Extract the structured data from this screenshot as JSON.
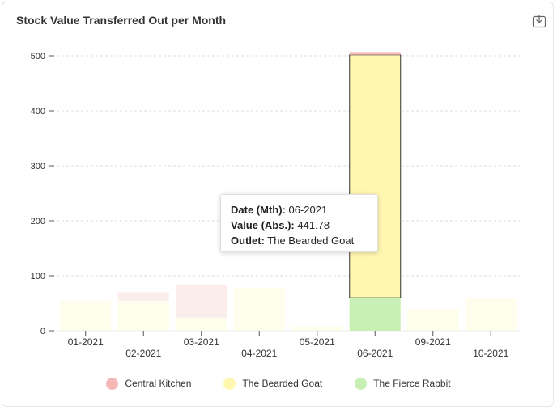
{
  "card": {
    "title": "Stock Value Transferred Out per Month",
    "download_icon": "download-icon"
  },
  "tooltip": {
    "date_label": "Date (Mth):",
    "date_value": "06-2021",
    "value_label": "Value (Abs.):",
    "value_value": "441.78",
    "outlet_label": "Outlet:",
    "outlet_value": "The Bearded Goat"
  },
  "chart_data": {
    "type": "bar",
    "stacked": true,
    "title": "Stock Value Transferred Out per Month",
    "categories": [
      "01-2021",
      "02-2021",
      "03-2021",
      "04-2021",
      "05-2021",
      "06-2021",
      "09-2021",
      "10-2021"
    ],
    "series": [
      {
        "name": "The Fierce Rabbit",
        "color": "#c8f0b4",
        "values": [
          0,
          0,
          0,
          0,
          0,
          60,
          0,
          0
        ]
      },
      {
        "name": "The Bearded Goat",
        "color": "#fff7b0",
        "values": [
          55,
          55,
          24,
          78,
          8,
          441.78,
          40,
          60
        ]
      },
      {
        "name": "Central Kitchen",
        "color": "#f5b8b8",
        "values": [
          0,
          15,
          60,
          0,
          0,
          5,
          0,
          0
        ]
      }
    ],
    "highlighted_category": "06-2021",
    "ylim": [
      0,
      500
    ],
    "yticks": [
      0,
      100,
      200,
      300,
      400,
      500
    ],
    "grid": true,
    "legend_position": "bottom-center"
  }
}
